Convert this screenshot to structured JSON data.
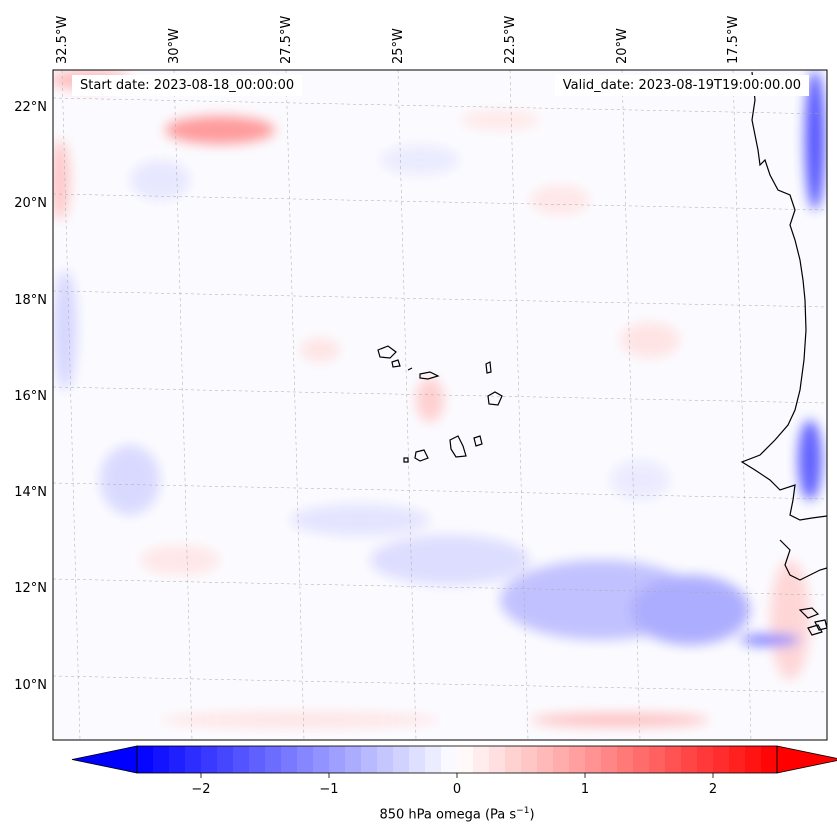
{
  "map": {
    "field": "850 hPa omega",
    "units": "Pa s",
    "units_exponent": "−1",
    "lon_range": [
      -32.8,
      -15.5
    ],
    "lat_range": [
      8.9,
      22.7
    ],
    "lon_ticks": [
      "32.5°W",
      "30°W",
      "27.5°W",
      "25°W",
      "22.5°W",
      "20°W",
      "17.5°W"
    ],
    "lat_ticks": [
      "22°N",
      "20°N",
      "18°N",
      "16°N",
      "14°N",
      "12°N",
      "10°N"
    ],
    "colormap": "bwr",
    "color_low": "#0000ff",
    "color_mid": "#ffffff",
    "color_high": "#ff0000"
  },
  "header": {
    "start_label": "Start date: 2023-08-18_00:00:00",
    "valid_label": "Valid_date: 2023-08-19T19:00:00.00"
  },
  "colorbar": {
    "ticks": [
      "−2",
      "−1",
      "0",
      "1",
      "2"
    ],
    "vmin": -2.5,
    "vmax": 2.5,
    "extend": "both",
    "label_prefix": "850 hPa omega (Pa s",
    "label_suffix": ")"
  }
}
